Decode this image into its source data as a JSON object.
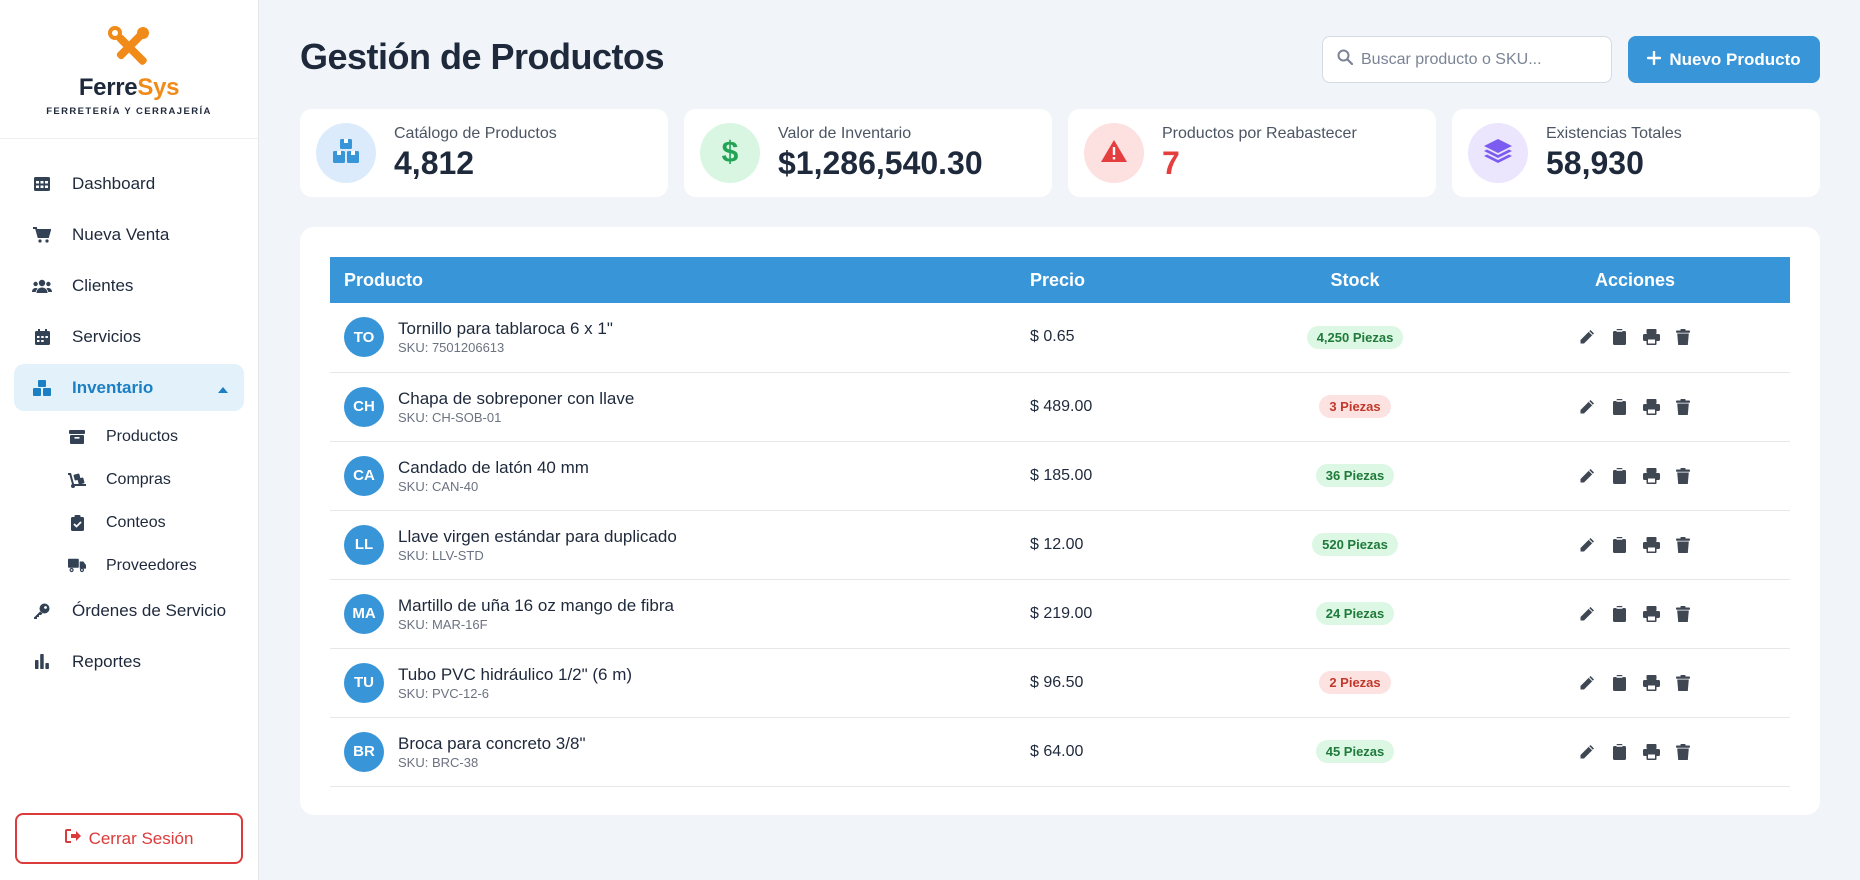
{
  "brand": {
    "name_part1": "Ferre",
    "name_part2": "Sys",
    "tagline": "FERRETERÍA Y CERRAJERÍA",
    "accent": "#f08a18"
  },
  "sidebar": {
    "items": [
      {
        "label": "Dashboard",
        "icon": "table-grid-icon"
      },
      {
        "label": "Nueva Venta",
        "icon": "cart-icon"
      },
      {
        "label": "Clientes",
        "icon": "users-icon"
      },
      {
        "label": "Servicios",
        "icon": "calendar-icon"
      },
      {
        "label": "Inventario",
        "icon": "boxes-icon",
        "active": true
      }
    ],
    "subitems": [
      {
        "label": "Productos",
        "icon": "box-icon"
      },
      {
        "label": "Compras",
        "icon": "dolly-icon"
      },
      {
        "label": "Conteos",
        "icon": "clipboard-check-icon"
      },
      {
        "label": "Proveedores",
        "icon": "truck-icon"
      }
    ],
    "items_after": [
      {
        "label": "Órdenes de Servicio",
        "icon": "key-icon"
      },
      {
        "label": "Reportes",
        "icon": "bar-chart-icon"
      }
    ],
    "logout_label": "Cerrar Sesión"
  },
  "header": {
    "title": "Gestión de Productos",
    "search_placeholder": "Buscar producto o SKU...",
    "new_button_label": "Nuevo Producto"
  },
  "stats": [
    {
      "label": "Catálogo de Productos",
      "value": "4,812",
      "color": "#3895d8"
    },
    {
      "label": "Valor de Inventario",
      "value": "$1,286,540.30",
      "color": "#22a355"
    },
    {
      "label": "Productos por Reabastecer",
      "value": "7",
      "color": "#e53e3e"
    },
    {
      "label": "Existencias Totales",
      "value": "58,930",
      "color": "#7c5cf0"
    }
  ],
  "table": {
    "headers": {
      "product": "Producto",
      "price": "Precio",
      "stock": "Stock",
      "actions": "Acciones"
    },
    "rows": [
      {
        "initials": "TO",
        "name": "Tornillo para tablaroca 6 x 1\"",
        "sku": "SKU: 7501206613",
        "price": "$ 0.65",
        "stock": "4,250 Piezas",
        "low": false
      },
      {
        "initials": "CH",
        "name": "Chapa de sobreponer con llave",
        "sku": "SKU: CH-SOB-01",
        "price": "$ 489.00",
        "stock": "3 Piezas",
        "low": true
      },
      {
        "initials": "CA",
        "name": "Candado de latón 40 mm",
        "sku": "SKU: CAN-40",
        "price": "$ 185.00",
        "stock": "36 Piezas",
        "low": false
      },
      {
        "initials": "LL",
        "name": "Llave virgen estándar para duplicado",
        "sku": "SKU: LLV-STD",
        "price": "$ 12.00",
        "stock": "520 Piezas",
        "low": false
      },
      {
        "initials": "MA",
        "name": "Martillo de uña 16 oz mango de fibra",
        "sku": "SKU: MAR-16F",
        "price": "$ 219.00",
        "stock": "24 Piezas",
        "low": false
      },
      {
        "initials": "TU",
        "name": "Tubo PVC hidráulico 1/2\" (6 m)",
        "sku": "SKU: PVC-12-6",
        "price": "$ 96.50",
        "stock": "2 Piezas",
        "low": true
      },
      {
        "initials": "BR",
        "name": "Broca para concreto 3/8\"",
        "sku": "SKU: BRC-38",
        "price": "$ 64.00",
        "stock": "45 Piezas",
        "low": false
      }
    ]
  }
}
